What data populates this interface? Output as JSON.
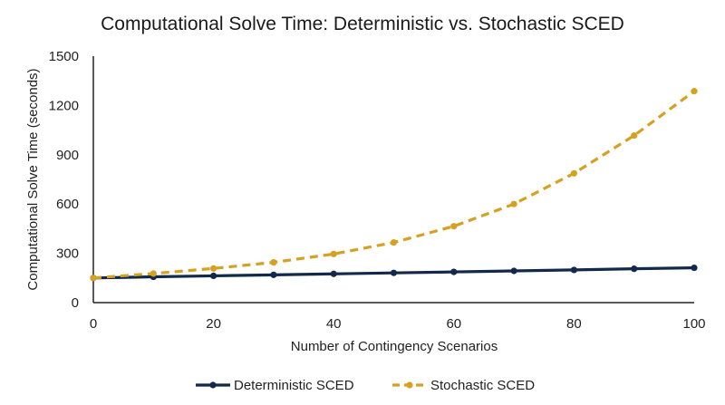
{
  "chart_data": {
    "type": "line",
    "title": "Computational Solve Time: Deterministic vs. Stochastic SCED",
    "xlabel": "Number of Contingency Scenarios",
    "ylabel": "Computational Solve Time (seconds)",
    "xlim": [
      0,
      100
    ],
    "ylim": [
      0,
      1500
    ],
    "xticks": [
      "0",
      "20",
      "40",
      "60",
      "80",
      "100"
    ],
    "yticks": [
      "0",
      "300",
      "600",
      "900",
      "1200",
      "1500"
    ],
    "grid": false,
    "legend_position": "bottom",
    "x": [
      0,
      10,
      20,
      30,
      40,
      50,
      60,
      70,
      80,
      90,
      100
    ],
    "series": [
      {
        "name": "Deterministic SCED",
        "color": "#13294b",
        "line_style": "solid",
        "values": [
          150,
          157,
          163,
          169,
          175,
          181,
          187,
          193,
          199,
          206,
          212
        ]
      },
      {
        "name": "Stochastic SCED",
        "color": "#d6a021",
        "line_style": "dashed",
        "values": [
          150,
          177,
          208,
          245,
          296,
          366,
          465,
          600,
          787,
          1017,
          1287
        ]
      }
    ]
  }
}
